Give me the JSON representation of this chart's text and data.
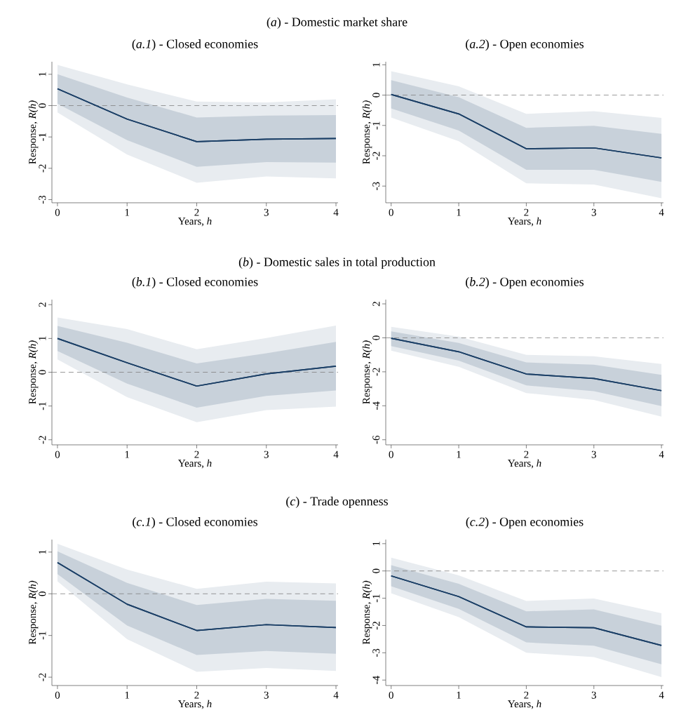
{
  "chart_data": [
    {
      "type": "line",
      "title": "(*a*) - Domestic market share",
      "subtitle": "(*a.1*) - Closed economies",
      "xlabel": "Years, *h*",
      "ylabel": "Response, *R(h)*",
      "x": [
        0,
        1,
        2,
        3,
        4
      ],
      "xlim": [
        -0.08,
        4.03
      ],
      "xticks": [
        0,
        1,
        2,
        3,
        4
      ],
      "ylim": [
        -3.1,
        1.4
      ],
      "yticks": [
        -3,
        -2,
        -1,
        0,
        1
      ],
      "series": [
        {
          "color": "#1b3f66",
          "values": [
            0.54,
            -0.43,
            -1.15,
            -1.07,
            -1.05
          ],
          "lower": [
            -0.22,
            -1.56,
            -2.46,
            -2.26,
            -2.32
          ],
          "upper": [
            1.3,
            0.68,
            0.13,
            0.1,
            0.2
          ]
        },
        {
          "color": "#1b3f66",
          "values": [
            0.54,
            -0.43,
            -1.15,
            -1.07,
            -1.05
          ],
          "lower": [
            0.06,
            -1.1,
            -1.95,
            -1.8,
            -1.82
          ],
          "upper": [
            1.0,
            0.26,
            -0.38,
            -0.32,
            -0.3
          ]
        }
      ],
      "ref_lines": [
        {
          "axis": "y",
          "value": 0,
          "color": "#7f7f7f",
          "line_style": "dashed"
        }
      ]
    },
    {
      "type": "line",
      "subtitle": "(*a.2*) - Open economies",
      "xlabel": "Years, *h*",
      "ylabel": "Response, *R(h)*",
      "x": [
        0,
        1,
        2,
        3,
        4
      ],
      "xlim": [
        -0.08,
        4.03
      ],
      "xticks": [
        0,
        1,
        2,
        3,
        4
      ],
      "ylim": [
        -3.55,
        1.1
      ],
      "yticks": [
        -3,
        -2,
        -1,
        0,
        1
      ],
      "series": [
        {
          "color": "#1b3f66",
          "values": [
            0.02,
            -0.62,
            -1.77,
            -1.74,
            -2.07
          ],
          "lower": [
            -0.74,
            -1.52,
            -2.91,
            -2.95,
            -3.4
          ],
          "upper": [
            0.79,
            0.29,
            -0.62,
            -0.53,
            -0.75
          ]
        },
        {
          "color": "#1b3f66",
          "values": [
            0.02,
            -0.62,
            -1.77,
            -1.74,
            -2.07
          ],
          "lower": [
            -0.44,
            -1.17,
            -2.46,
            -2.46,
            -2.86
          ],
          "upper": [
            0.49,
            -0.07,
            -1.08,
            -1.01,
            -1.28
          ]
        }
      ],
      "ref_lines": [
        {
          "axis": "y",
          "value": 0,
          "color": "#7f7f7f",
          "line_style": "dashed"
        }
      ]
    },
    {
      "type": "line",
      "title": "(*b*) - Domestic sales in total production",
      "subtitle": "(*b.1*) - Closed economies",
      "xlabel": "Years, *h*",
      "ylabel": "Response, *R(h)*",
      "x": [
        0,
        1,
        2,
        3,
        4
      ],
      "xlim": [
        -0.08,
        4.03
      ],
      "xticks": [
        0,
        1,
        2,
        3,
        4
      ],
      "ylim": [
        -2.15,
        2.15
      ],
      "yticks": [
        -2,
        -1,
        0,
        1,
        2
      ],
      "series": [
        {
          "color": "#1b3f66",
          "values": [
            1.0,
            0.28,
            -0.41,
            -0.05,
            0.18
          ],
          "lower": [
            0.38,
            -0.74,
            -1.48,
            -1.12,
            -1.02
          ],
          "upper": [
            1.62,
            1.28,
            0.68,
            1.01,
            1.38
          ]
        },
        {
          "color": "#1b3f66",
          "values": [
            1.0,
            0.28,
            -0.41,
            -0.05,
            0.18
          ],
          "lower": [
            0.63,
            -0.34,
            -1.05,
            -0.7,
            -0.54
          ],
          "upper": [
            1.37,
            0.87,
            0.26,
            0.56,
            0.9
          ]
        }
      ],
      "ref_lines": [
        {
          "axis": "y",
          "value": 0,
          "color": "#7f7f7f",
          "line_style": "dashed"
        }
      ]
    },
    {
      "type": "line",
      "subtitle": "(*b.2*) - Open economies",
      "xlabel": "Years, *h*",
      "ylabel": "Response, *R(h)*",
      "x": [
        0,
        1,
        2,
        3,
        4
      ],
      "xlim": [
        -0.08,
        4.03
      ],
      "xticks": [
        0,
        1,
        2,
        3,
        4
      ],
      "ylim": [
        -6.3,
        2.25
      ],
      "yticks": [
        -6,
        -4,
        -2,
        0,
        2
      ],
      "series": [
        {
          "color": "#1b3f66",
          "values": [
            -0.03,
            -0.82,
            -2.13,
            -2.39,
            -3.11
          ],
          "lower": [
            -0.76,
            -1.7,
            -3.25,
            -3.66,
            -4.64
          ],
          "upper": [
            0.65,
            0.07,
            -1.0,
            -1.09,
            -1.54
          ]
        },
        {
          "color": "#1b3f66",
          "values": [
            -0.03,
            -0.82,
            -2.13,
            -2.39,
            -3.11
          ],
          "lower": [
            -0.49,
            -1.34,
            -2.8,
            -3.14,
            -4.02
          ],
          "upper": [
            0.38,
            -0.3,
            -1.45,
            -1.58,
            -2.18
          ]
        }
      ],
      "ref_lines": [
        {
          "axis": "y",
          "value": 0,
          "color": "#7f7f7f",
          "line_style": "dashed"
        }
      ]
    },
    {
      "type": "line",
      "title": "(*c*) - Trade openness",
      "subtitle": "(*c.1*) - Closed economies",
      "xlabel": "Years, *h*",
      "ylabel": "Response, *R(h)*",
      "x": [
        0,
        1,
        2,
        3,
        4
      ],
      "xlim": [
        -0.08,
        4.03
      ],
      "xticks": [
        0,
        1,
        2,
        3,
        4
      ],
      "ylim": [
        -2.2,
        1.3
      ],
      "yticks": [
        -2,
        -1,
        0,
        1
      ],
      "series": [
        {
          "color": "#1b3f66",
          "values": [
            0.75,
            -0.25,
            -0.88,
            -0.74,
            -0.81
          ],
          "lower": [
            0.3,
            -1.09,
            -1.87,
            -1.78,
            -1.85
          ],
          "upper": [
            1.2,
            0.58,
            0.12,
            0.29,
            0.25
          ]
        },
        {
          "color": "#1b3f66",
          "values": [
            0.75,
            -0.25,
            -0.88,
            -0.74,
            -0.81
          ],
          "lower": [
            0.47,
            -0.76,
            -1.47,
            -1.37,
            -1.44
          ],
          "upper": [
            1.02,
            0.26,
            -0.27,
            -0.12,
            -0.17
          ]
        }
      ],
      "ref_lines": [
        {
          "axis": "y",
          "value": 0,
          "color": "#7f7f7f",
          "line_style": "dashed"
        }
      ]
    },
    {
      "type": "line",
      "subtitle": "(*c.2*) - Open economies",
      "xlabel": "Years, *h*",
      "ylabel": "Response, *R(h)*",
      "x": [
        0,
        1,
        2,
        3,
        4
      ],
      "xlim": [
        -0.08,
        4.03
      ],
      "xticks": [
        0,
        1,
        2,
        3,
        4
      ],
      "ylim": [
        -4.2,
        1.15
      ],
      "yticks": [
        -4,
        -3,
        -2,
        -1,
        0,
        1
      ],
      "series": [
        {
          "color": "#1b3f66",
          "values": [
            -0.18,
            -0.94,
            -2.05,
            -2.08,
            -2.73
          ],
          "lower": [
            -0.82,
            -1.69,
            -3.0,
            -3.16,
            -3.89
          ],
          "upper": [
            0.49,
            -0.16,
            -1.1,
            -1.01,
            -1.55
          ]
        },
        {
          "color": "#1b3f66",
          "values": [
            -0.18,
            -0.94,
            -2.05,
            -2.08,
            -2.73
          ],
          "lower": [
            -0.56,
            -1.39,
            -2.62,
            -2.74,
            -3.42
          ],
          "upper": [
            0.21,
            -0.47,
            -1.48,
            -1.41,
            -2.01
          ]
        }
      ],
      "ref_lines": [
        {
          "axis": "y",
          "value": 0,
          "color": "#7f7f7f",
          "line_style": "dashed"
        }
      ]
    }
  ]
}
